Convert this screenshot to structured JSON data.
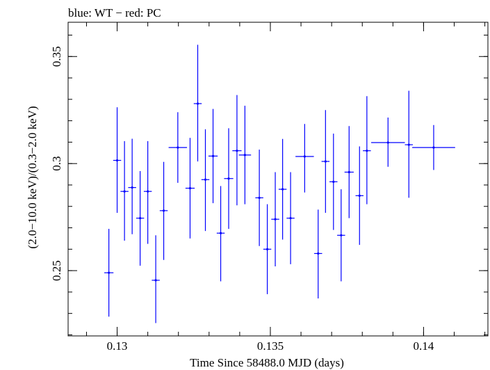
{
  "chart_data": {
    "type": "scatter",
    "title": "blue: WT − red: PC",
    "xlabel": "Time Since 58488.0 MJD (days)",
    "ylabel": "(2.0−10.0 keV)/(0.3−2.0 keV)",
    "xlim": [
      0.1284,
      0.1421
    ],
    "ylim": [
      0.2195,
      0.366
    ],
    "xticks": [
      {
        "value": 0.13,
        "label": "0.13"
      },
      {
        "value": 0.135,
        "label": "0.135"
      },
      {
        "value": 0.14,
        "label": "0.14"
      }
    ],
    "yticks": [
      {
        "value": 0.25,
        "label": "0.25"
      },
      {
        "value": 0.3,
        "label": "0.3"
      },
      {
        "value": 0.35,
        "label": "0.35"
      }
    ],
    "x_minor_step": 0.001,
    "y_minor_step": 0.01,
    "grid": false,
    "series": [
      {
        "color": "#0000ff",
        "points": [
          {
            "x": 0.12973,
            "y": 0.249,
            "xerr": 0.00015,
            "ylo": 0.2285,
            "yhi": 0.2695
          },
          {
            "x": 0.13,
            "y": 0.3015,
            "xerr": 0.00013,
            "ylo": 0.277,
            "yhi": 0.3263
          },
          {
            "x": 0.13024,
            "y": 0.287,
            "xerr": 0.00013,
            "ylo": 0.264,
            "yhi": 0.3105
          },
          {
            "x": 0.13049,
            "y": 0.2888,
            "xerr": 0.00013,
            "ylo": 0.267,
            "yhi": 0.3116
          },
          {
            "x": 0.13075,
            "y": 0.2745,
            "xerr": 0.00013,
            "ylo": 0.2523,
            "yhi": 0.2965
          },
          {
            "x": 0.131,
            "y": 0.287,
            "xerr": 0.00013,
            "ylo": 0.2625,
            "yhi": 0.3105
          },
          {
            "x": 0.13126,
            "y": 0.2455,
            "xerr": 0.00013,
            "ylo": 0.2255,
            "yhi": 0.2665
          },
          {
            "x": 0.13152,
            "y": 0.278,
            "xerr": 0.00013,
            "ylo": 0.255,
            "yhi": 0.3008
          },
          {
            "x": 0.13198,
            "y": 0.3075,
            "xerr": 0.0003,
            "ylo": 0.291,
            "yhi": 0.324
          },
          {
            "x": 0.13238,
            "y": 0.2885,
            "xerr": 0.00015,
            "ylo": 0.265,
            "yhi": 0.312
          },
          {
            "x": 0.13263,
            "y": 0.328,
            "xerr": 0.00013,
            "ylo": 0.301,
            "yhi": 0.3555
          },
          {
            "x": 0.13288,
            "y": 0.2925,
            "xerr": 0.00013,
            "ylo": 0.2685,
            "yhi": 0.316
          },
          {
            "x": 0.13313,
            "y": 0.3035,
            "xerr": 0.00015,
            "ylo": 0.2815,
            "yhi": 0.3255
          },
          {
            "x": 0.13338,
            "y": 0.2675,
            "xerr": 0.00013,
            "ylo": 0.245,
            "yhi": 0.2895
          },
          {
            "x": 0.13364,
            "y": 0.293,
            "xerr": 0.00015,
            "ylo": 0.2695,
            "yhi": 0.3165
          },
          {
            "x": 0.13391,
            "y": 0.306,
            "xerr": 0.00015,
            "ylo": 0.2805,
            "yhi": 0.332
          },
          {
            "x": 0.13417,
            "y": 0.304,
            "xerr": 0.0002,
            "ylo": 0.281,
            "yhi": 0.327
          },
          {
            "x": 0.13464,
            "y": 0.284,
            "xerr": 0.00013,
            "ylo": 0.2615,
            "yhi": 0.3065
          },
          {
            "x": 0.1349,
            "y": 0.26,
            "xerr": 0.00013,
            "ylo": 0.239,
            "yhi": 0.281
          },
          {
            "x": 0.13516,
            "y": 0.274,
            "xerr": 0.00013,
            "ylo": 0.252,
            "yhi": 0.296
          },
          {
            "x": 0.1354,
            "y": 0.288,
            "xerr": 0.00013,
            "ylo": 0.2645,
            "yhi": 0.3115
          },
          {
            "x": 0.13566,
            "y": 0.2745,
            "xerr": 0.00013,
            "ylo": 0.253,
            "yhi": 0.296
          },
          {
            "x": 0.13612,
            "y": 0.3033,
            "xerr": 0.0003,
            "ylo": 0.2865,
            "yhi": 0.3185
          },
          {
            "x": 0.13656,
            "y": 0.258,
            "xerr": 0.00013,
            "ylo": 0.237,
            "yhi": 0.2785
          },
          {
            "x": 0.1368,
            "y": 0.301,
            "xerr": 0.00013,
            "ylo": 0.277,
            "yhi": 0.325
          },
          {
            "x": 0.13706,
            "y": 0.2915,
            "xerr": 0.00013,
            "ylo": 0.269,
            "yhi": 0.314
          },
          {
            "x": 0.13731,
            "y": 0.2665,
            "xerr": 0.00013,
            "ylo": 0.245,
            "yhi": 0.288
          },
          {
            "x": 0.13757,
            "y": 0.296,
            "xerr": 0.00015,
            "ylo": 0.2745,
            "yhi": 0.3175
          },
          {
            "x": 0.13791,
            "y": 0.285,
            "xerr": 0.00013,
            "ylo": 0.262,
            "yhi": 0.308
          },
          {
            "x": 0.13815,
            "y": 0.306,
            "xerr": 0.00013,
            "ylo": 0.281,
            "yhi": 0.3315
          },
          {
            "x": 0.13884,
            "y": 0.3098,
            "xerr": 0.00055,
            "ylo": 0.2985,
            "yhi": 0.3215
          },
          {
            "x": 0.13952,
            "y": 0.3088,
            "xerr": 0.00013,
            "ylo": 0.284,
            "yhi": 0.334
          },
          {
            "x": 0.14033,
            "y": 0.3075,
            "xerr": 0.0007,
            "ylo": 0.297,
            "yhi": 0.318
          }
        ]
      }
    ]
  }
}
